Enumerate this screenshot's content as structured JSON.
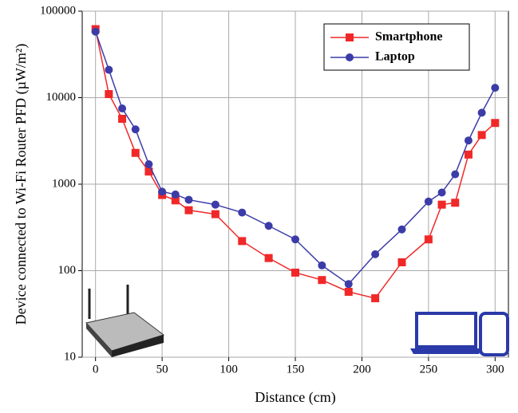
{
  "chart_data": {
    "type": "line",
    "xlabel": "Distance (cm)",
    "ylabel": "Device connected to Wi-Fi Router PFD (µW/m²)",
    "x": [
      0,
      10,
      20,
      30,
      40,
      50,
      60,
      70,
      90,
      110,
      130,
      150,
      170,
      190,
      210,
      230,
      250,
      260,
      270,
      280,
      290,
      300
    ],
    "series": [
      {
        "name": "Smartphone",
        "color": "#f02828",
        "marker": "square",
        "values": [
          62000,
          11000,
          5700,
          2300,
          1400,
          750,
          650,
          500,
          450,
          220,
          140,
          95,
          78,
          57,
          48,
          125,
          230,
          580,
          610,
          2200,
          3700,
          5100
        ]
      },
      {
        "name": "Laptop",
        "color": "#3c3ca8",
        "marker": "circle",
        "values": [
          58000,
          21000,
          7500,
          4300,
          1700,
          820,
          760,
          660,
          580,
          470,
          330,
          230,
          115,
          70,
          155,
          300,
          630,
          800,
          1300,
          3200,
          6700,
          13000
        ]
      }
    ],
    "xlim": [
      -10,
      310
    ],
    "xticks": [
      0,
      50,
      100,
      150,
      200,
      250,
      300
    ],
    "ylim": [
      10,
      100000
    ],
    "yticks": [
      10,
      100,
      1000,
      10000,
      100000
    ],
    "ylog": true,
    "grid": true,
    "legend": "top-right"
  }
}
